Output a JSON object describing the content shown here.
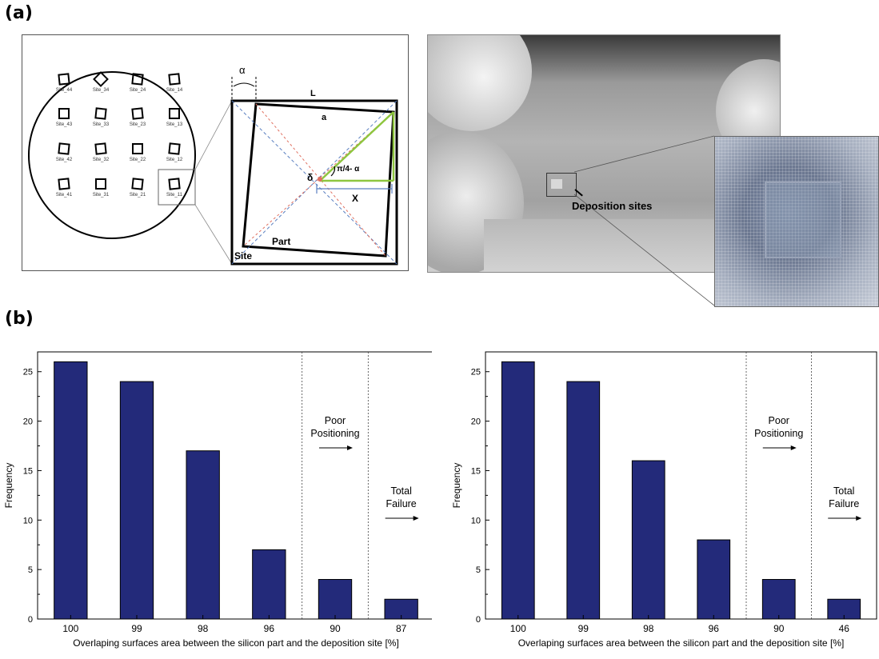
{
  "panel_labels": {
    "a": "(a)",
    "b": "(b)"
  },
  "wafer": {
    "sites": [
      [
        "Site_44",
        "Site_34",
        "Site_24",
        "Site_14"
      ],
      [
        "Site_43",
        "Site_33",
        "Site_23",
        "Site_13"
      ],
      [
        "Site_42",
        "Site_32",
        "Site_22",
        "Site_12"
      ],
      [
        "Site_41",
        "Site_31",
        "Site_21",
        "Site_11"
      ]
    ]
  },
  "geometry": {
    "L": "L",
    "a": "a",
    "alpha": "α",
    "delta": "δ",
    "angle": "π/4- α",
    "X": "X",
    "part": "Part",
    "site": "Site"
  },
  "photo": {
    "callout": "Deposition sites"
  },
  "colors": {
    "bar": "#232a7a",
    "diag_red": "#e07060",
    "diag_blue": "#5a7fc0",
    "diag_green": "#8ec63f"
  },
  "chart_data": [
    {
      "type": "bar",
      "categories": [
        "100",
        "99",
        "98",
        "96",
        "90",
        "87"
      ],
      "values": [
        26,
        24,
        17,
        7,
        4,
        2
      ],
      "xlabel": "Overlaping surfaces area between the silicon part and the deposition site [%]",
      "ylabel": "Frequency",
      "ylim": [
        0,
        27
      ],
      "yticks": [
        0,
        5,
        10,
        15,
        20,
        25
      ],
      "grid": false,
      "annotations": [
        {
          "lines": [
            "Poor",
            "Positioning"
          ],
          "region": "poor"
        },
        {
          "lines": [
            "Total",
            "Failure"
          ],
          "region": "total"
        }
      ]
    },
    {
      "type": "bar",
      "categories": [
        "100",
        "99",
        "98",
        "96",
        "90",
        "46"
      ],
      "values": [
        26,
        24,
        16,
        8,
        4,
        2
      ],
      "xlabel": "Overlaping surfaces area between the silicon part and the deposition site [%]",
      "ylabel": "Frequency",
      "ylim": [
        0,
        27
      ],
      "yticks": [
        0,
        5,
        10,
        15,
        20,
        25
      ],
      "grid": false,
      "annotations": [
        {
          "lines": [
            "Poor",
            "Positioning"
          ],
          "region": "poor"
        },
        {
          "lines": [
            "Total",
            "Failure"
          ],
          "region": "total"
        }
      ]
    }
  ]
}
